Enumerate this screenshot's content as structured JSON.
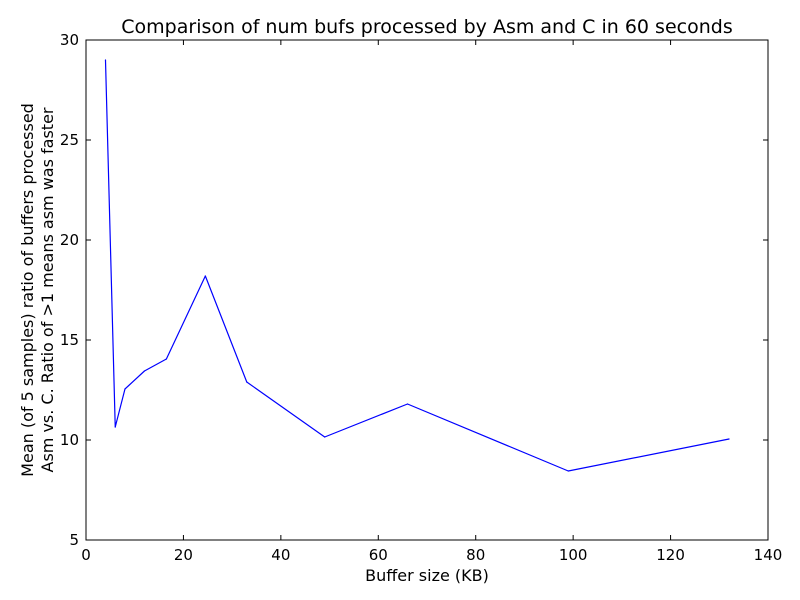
{
  "chart_data": {
    "type": "line",
    "title": "Comparison of num bufs processed by Asm and C in 60 seconds",
    "xlabel": "Buffer size (KB)",
    "ylabel": [
      "Mean (of 5 samples) ratio of buffers processed",
      "Asm vs. C. Ratio of >1 means asm was faster"
    ],
    "xlim": [
      0,
      140
    ],
    "ylim": [
      5,
      30
    ],
    "xticks": [
      0,
      20,
      40,
      60,
      80,
      100,
      120,
      140
    ],
    "yticks": [
      5,
      10,
      15,
      20,
      25,
      30
    ],
    "grid": false,
    "series": [
      {
        "color": "#0000ff",
        "x": [
          4,
          6,
          8,
          12,
          16.5,
          24.5,
          33,
          49,
          66,
          99,
          132
        ],
        "y": [
          29.0,
          10.65,
          12.55,
          13.45,
          14.05,
          18.2,
          12.9,
          10.15,
          11.8,
          8.45,
          10.05
        ]
      }
    ]
  }
}
